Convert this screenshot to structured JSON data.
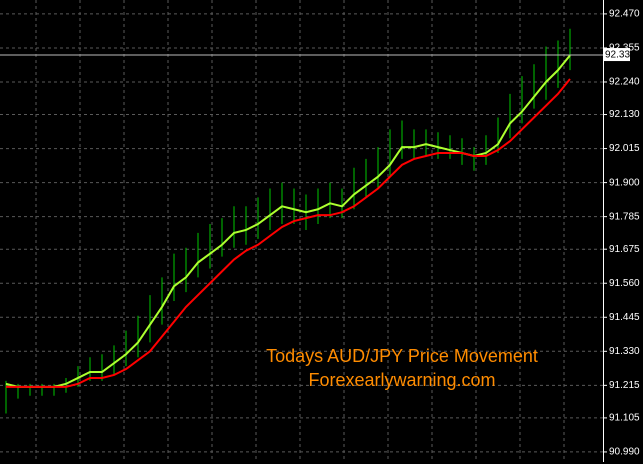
{
  "chart_data": {
    "type": "ohlc",
    "annotations": [
      "Todays AUD/JPY Price Movement",
      "Forexearlywarning.com"
    ],
    "current_price": 92.331,
    "ylim": [
      90.956,
      92.517
    ],
    "yticks": [
      {
        "value": 92.47,
        "label": "92.470"
      },
      92.355,
      {
        "value": 92.24,
        "label": "92.240"
      },
      {
        "value": 92.13,
        "label": "92.130"
      },
      92.015,
      {
        "value": 91.9,
        "label": "91.900"
      },
      91.785,
      91.675,
      {
        "value": 91.56,
        "label": "91.560"
      },
      91.445,
      {
        "value": 91.33,
        "label": "91.330"
      },
      91.215,
      91.105,
      {
        "value": 90.99,
        "label": "90.990"
      }
    ],
    "grid": true,
    "series": [
      {
        "kind": "range",
        "color": "#00c800",
        "high": [
          91.23,
          91.22,
          91.22,
          91.22,
          91.22,
          91.24,
          91.28,
          91.31,
          91.32,
          91.35,
          91.4,
          91.45,
          91.52,
          91.58,
          91.66,
          91.68,
          91.73,
          91.76,
          91.78,
          91.82,
          91.82,
          91.85,
          91.88,
          91.9,
          91.88,
          91.86,
          91.88,
          91.9,
          91.88,
          91.95,
          91.98,
          92.02,
          92.08,
          92.11,
          92.08,
          92.08,
          92.07,
          92.06,
          92.05,
          92.02,
          92.06,
          92.12,
          92.2,
          92.26,
          92.3,
          92.36,
          92.38,
          92.42
        ],
        "low": [
          91.12,
          91.17,
          91.18,
          91.18,
          91.18,
          91.19,
          91.21,
          91.23,
          91.23,
          91.25,
          91.28,
          91.31,
          91.36,
          91.42,
          91.5,
          91.53,
          91.58,
          91.61,
          91.65,
          91.68,
          91.69,
          91.71,
          91.74,
          91.76,
          91.76,
          91.74,
          91.76,
          91.78,
          91.78,
          91.81,
          91.85,
          91.88,
          91.92,
          91.98,
          91.98,
          91.99,
          91.98,
          91.98,
          91.96,
          91.94,
          91.96,
          92.0,
          92.05,
          92.1,
          92.15,
          92.18,
          92.22,
          92.28
        ]
      },
      {
        "kind": "line",
        "color": "#adff2f",
        "values": [
          91.22,
          91.21,
          91.21,
          91.21,
          91.21,
          91.22,
          91.24,
          91.26,
          91.26,
          91.29,
          91.32,
          91.36,
          91.42,
          91.48,
          91.55,
          91.58,
          91.63,
          91.66,
          91.69,
          91.73,
          91.74,
          91.76,
          91.79,
          91.82,
          91.81,
          91.8,
          91.81,
          91.83,
          91.82,
          91.86,
          91.89,
          91.92,
          91.96,
          92.02,
          92.02,
          92.03,
          92.02,
          92.01,
          92.0,
          91.99,
          92.0,
          92.03,
          92.1,
          92.14,
          92.19,
          92.24,
          92.28,
          92.33
        ]
      },
      {
        "kind": "line",
        "color": "#ff0000",
        "values": [
          91.21,
          91.21,
          91.21,
          91.21,
          91.21,
          91.21,
          91.22,
          91.24,
          91.24,
          91.25,
          91.27,
          91.3,
          91.33,
          91.38,
          91.43,
          91.48,
          91.52,
          91.56,
          91.6,
          91.64,
          91.67,
          91.69,
          91.72,
          91.75,
          91.77,
          91.78,
          91.79,
          91.79,
          91.8,
          91.82,
          91.85,
          91.88,
          91.92,
          91.96,
          91.98,
          91.99,
          92.0,
          92.0,
          92.0,
          91.99,
          91.99,
          92.01,
          92.04,
          92.08,
          92.12,
          92.16,
          92.2,
          92.25
        ]
      }
    ]
  }
}
